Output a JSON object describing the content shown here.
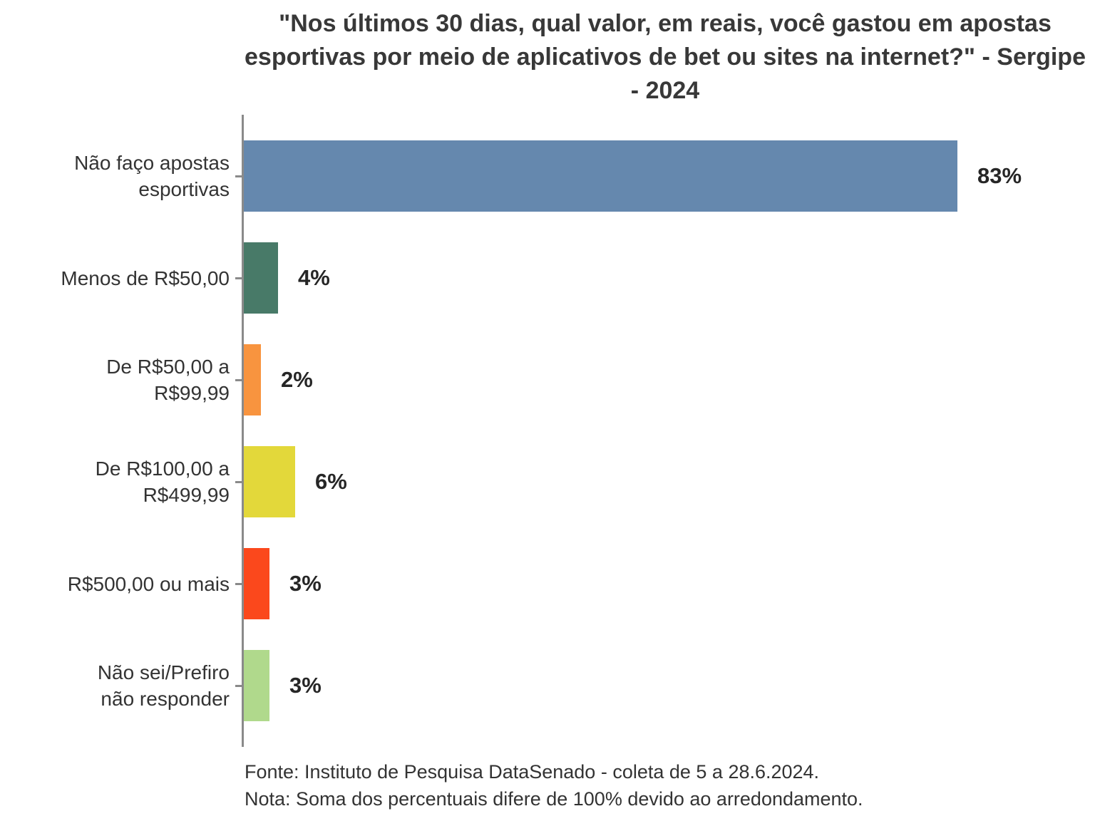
{
  "title": "\"Nos últimos 30 dias, qual valor, em reais, você gastou em apostas esportivas por meio de aplicativos de bet ou sites na internet?\" - Sergipe - 2024",
  "chart_data": {
    "type": "bar",
    "orientation": "horizontal",
    "title": "\"Nos últimos 30 dias, qual valor, em reais, você gastou em apostas esportivas por meio de aplicativos de bet ou sites na internet?\" - Sergipe - 2024",
    "categories": [
      "Não faço apostas esportivas",
      "Menos de R$50,00",
      "De R$50,00 a R$99,99",
      "De R$100,00 a R$499,99",
      "R$500,00 ou mais",
      "Não sei/Prefiro não responder"
    ],
    "category_display_labels": [
      "Não faço apostas\nesportivas",
      "Menos de R$50,00",
      "De R$50,00 a\nR$99,99",
      "De R$100,00 a\nR$499,99",
      "R$500,00 ou mais",
      "Não sei/Prefiro\nnão responder"
    ],
    "values": [
      83,
      4,
      2,
      6,
      3,
      3
    ],
    "value_labels": [
      "83%",
      "4%",
      "2%",
      "6%",
      "3%",
      "3%"
    ],
    "bar_colors": [
      "#6588ae",
      "#487a68",
      "#f8943f",
      "#e3d83a",
      "#fb481c",
      "#b0d98c"
    ],
    "xlim": [
      0,
      100
    ],
    "xlabel": "",
    "ylabel": "",
    "grid": false,
    "legend": "none",
    "axis_color": "#8a8a8a"
  },
  "footer": {
    "source": "Fonte: Instituto de Pesquisa DataSenado - coleta de 5 a 28.6.2024.",
    "note": "Nota: Soma dos percentuais difere de 100% devido ao arredondamento."
  }
}
